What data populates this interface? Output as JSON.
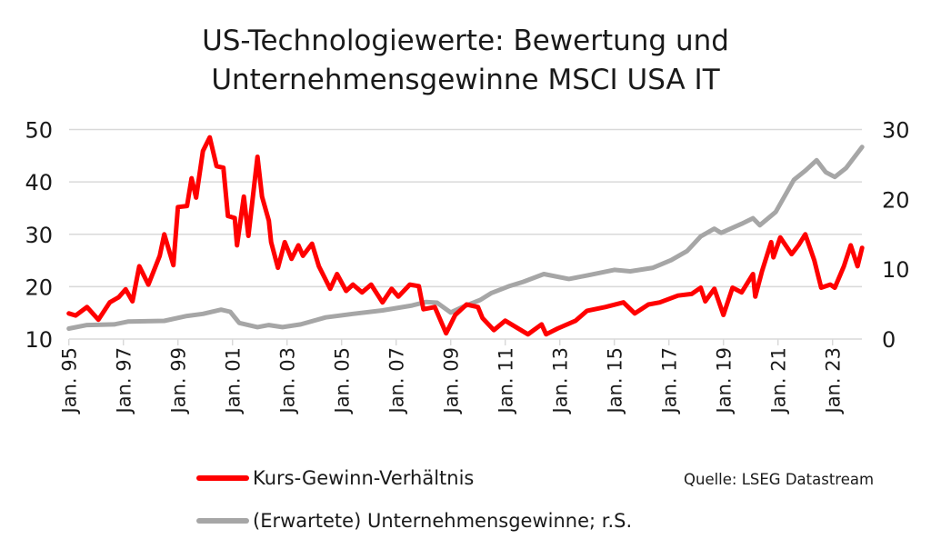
{
  "chart_data": {
    "type": "line",
    "title": "US-Technologiewerte: Bewertung und Unternehmensgewinne MSCI USA IT",
    "title_lines": [
      "US-Technologiewerte: Bewertung und",
      "Unternehmensgewinne MSCI USA IT"
    ],
    "source": "Quelle: LSEG Datastream",
    "x_tick_labels": [
      "Jan. 95",
      "Jan. 97",
      "Jan. 99",
      "Jan. 01",
      "Jan. 03",
      "Jan. 05",
      "Jan. 07",
      "Jan. 09",
      "Jan. 11",
      "Jan. 13",
      "Jan. 15",
      "Jan. 17",
      "Jan. 19",
      "Jan. 21",
      "Jan. 23"
    ],
    "x_tick_dates": [
      "1995-01",
      "1997-01",
      "1999-01",
      "2001-01",
      "2003-01",
      "2005-01",
      "2007-01",
      "2009-01",
      "2011-01",
      "2013-01",
      "2015-01",
      "2017-01",
      "2019-01",
      "2021-01",
      "2023-01"
    ],
    "xlim": [
      "1995-01",
      "2024-02"
    ],
    "y_left": {
      "ylim": [
        10,
        50
      ],
      "ticks": [
        10,
        20,
        30,
        40,
        50
      ]
    },
    "y_right": {
      "ylim": [
        0,
        30
      ],
      "ticks": [
        0,
        10,
        20,
        30
      ]
    },
    "grid": true,
    "legend_placement": "bottom",
    "series": [
      {
        "name": "Kurs-Gewinn-Verhältnis",
        "axis": "left",
        "color": "#ff0000",
        "points": [
          [
            "1995-01",
            14.9
          ],
          [
            "1995-04",
            14.5
          ],
          [
            "1995-09",
            16.1
          ],
          [
            "1996-02",
            13.7
          ],
          [
            "1996-07",
            17
          ],
          [
            "1996-11",
            18
          ],
          [
            "1997-02",
            19.5
          ],
          [
            "1997-05",
            17.2
          ],
          [
            "1997-08",
            23.9
          ],
          [
            "1997-12",
            20.4
          ],
          [
            "1998-05",
            25.9
          ],
          [
            "1998-07",
            30
          ],
          [
            "1998-11",
            24.1
          ],
          [
            "1999-01",
            35.2
          ],
          [
            "1999-05",
            35.4
          ],
          [
            "1999-07",
            40.7
          ],
          [
            "1999-09",
            37
          ],
          [
            "1999-12",
            45.9
          ],
          [
            "2000-03",
            48.5
          ],
          [
            "2000-06",
            43
          ],
          [
            "2000-09",
            42.7
          ],
          [
            "2000-11",
            33.5
          ],
          [
            "2001-02",
            33.1
          ],
          [
            "2001-03",
            27.9
          ],
          [
            "2001-06",
            37.2
          ],
          [
            "2001-08",
            29.7
          ],
          [
            "2001-12",
            44.8
          ],
          [
            "2002-02",
            37.2
          ],
          [
            "2002-05",
            32.6
          ],
          [
            "2002-06",
            28.5
          ],
          [
            "2002-09",
            23.6
          ],
          [
            "2002-12",
            28.5
          ],
          [
            "2003-03",
            25.3
          ],
          [
            "2003-06",
            27.9
          ],
          [
            "2003-08",
            25.9
          ],
          [
            "2003-12",
            28.2
          ],
          [
            "2004-03",
            23.9
          ],
          [
            "2004-08",
            19.6
          ],
          [
            "2004-11",
            22.4
          ],
          [
            "2005-03",
            19.2
          ],
          [
            "2005-06",
            20.4
          ],
          [
            "2005-10",
            18.9
          ],
          [
            "2006-02",
            20.4
          ],
          [
            "2006-07",
            17
          ],
          [
            "2006-11",
            19.6
          ],
          [
            "2007-02",
            18.1
          ],
          [
            "2007-07",
            20.4
          ],
          [
            "2007-11",
            20.1
          ],
          [
            "2008-01",
            15.7
          ],
          [
            "2008-06",
            16.1
          ],
          [
            "2008-11",
            11.1
          ],
          [
            "2009-03",
            14.6
          ],
          [
            "2009-08",
            16.6
          ],
          [
            "2010-01",
            16.1
          ],
          [
            "2010-03",
            14
          ],
          [
            "2010-08",
            11.7
          ],
          [
            "2011-01",
            13.5
          ],
          [
            "2011-11",
            10.9
          ],
          [
            "2012-05",
            12.8
          ],
          [
            "2012-07",
            10.9
          ],
          [
            "2012-12",
            12
          ],
          [
            "2013-08",
            13.5
          ],
          [
            "2014-01",
            15.4
          ],
          [
            "2014-09",
            16.1
          ],
          [
            "2015-05",
            17
          ],
          [
            "2015-10",
            14.9
          ],
          [
            "2016-04",
            16.6
          ],
          [
            "2016-09",
            17
          ],
          [
            "2017-05",
            18.3
          ],
          [
            "2017-11",
            18.6
          ],
          [
            "2018-03",
            19.8
          ],
          [
            "2018-05",
            17.2
          ],
          [
            "2018-09",
            19.6
          ],
          [
            "2019-01",
            14.6
          ],
          [
            "2019-05",
            19.8
          ],
          [
            "2019-09",
            18.9
          ],
          [
            "2020-02",
            22.4
          ],
          [
            "2020-03",
            18.1
          ],
          [
            "2020-06",
            23
          ],
          [
            "2020-10",
            28.5
          ],
          [
            "2020-11",
            25.6
          ],
          [
            "2021-02",
            29.4
          ],
          [
            "2021-07",
            26.2
          ],
          [
            "2021-10",
            27.9
          ],
          [
            "2022-01",
            30
          ],
          [
            "2022-05",
            25
          ],
          [
            "2022-08",
            19.8
          ],
          [
            "2022-12",
            20.4
          ],
          [
            "2023-02",
            19.8
          ],
          [
            "2023-06",
            23.9
          ],
          [
            "2023-09",
            27.9
          ],
          [
            "2023-12",
            23.9
          ],
          [
            "2024-02",
            27.4
          ]
        ]
      },
      {
        "name": "(Erwartete) Unternehmensgewinne; r.S.",
        "axis": "right",
        "color": "#a6a6a6",
        "points": [
          [
            "1995-01",
            1.5
          ],
          [
            "1995-09",
            2.0
          ],
          [
            "1996-09",
            2.1
          ],
          [
            "1997-03",
            2.5
          ],
          [
            "1998-07",
            2.6
          ],
          [
            "1999-05",
            3.3
          ],
          [
            "1999-12",
            3.6
          ],
          [
            "2000-08",
            4.2
          ],
          [
            "2000-12",
            3.9
          ],
          [
            "2001-04",
            2.3
          ],
          [
            "2001-12",
            1.7
          ],
          [
            "2002-05",
            2.0
          ],
          [
            "2002-11",
            1.7
          ],
          [
            "2003-07",
            2.1
          ],
          [
            "2004-06",
            3.1
          ],
          [
            "2005-06",
            3.6
          ],
          [
            "2006-07",
            4.1
          ],
          [
            "2007-08",
            4.8
          ],
          [
            "2008-02",
            5.3
          ],
          [
            "2008-07",
            5.2
          ],
          [
            "2009-01",
            3.8
          ],
          [
            "2009-07",
            4.7
          ],
          [
            "2010-02",
            5.6
          ],
          [
            "2010-07",
            6.6
          ],
          [
            "2011-03",
            7.6
          ],
          [
            "2011-09",
            8.2
          ],
          [
            "2012-06",
            9.3
          ],
          [
            "2013-05",
            8.6
          ],
          [
            "2014-01",
            9.1
          ],
          [
            "2015-01",
            9.9
          ],
          [
            "2015-08",
            9.7
          ],
          [
            "2016-06",
            10.2
          ],
          [
            "2017-02",
            11.3
          ],
          [
            "2017-09",
            12.6
          ],
          [
            "2018-03",
            14.7
          ],
          [
            "2018-09",
            15.8
          ],
          [
            "2018-12",
            15.2
          ],
          [
            "2019-09",
            16.5
          ],
          [
            "2020-02",
            17.3
          ],
          [
            "2020-05",
            16.3
          ],
          [
            "2020-12",
            18.2
          ],
          [
            "2021-08",
            22.8
          ],
          [
            "2022-01",
            24.1
          ],
          [
            "2022-06",
            25.6
          ],
          [
            "2022-10",
            23.9
          ],
          [
            "2023-02",
            23.2
          ],
          [
            "2023-07",
            24.5
          ],
          [
            "2024-02",
            27.5
          ]
        ]
      }
    ]
  }
}
